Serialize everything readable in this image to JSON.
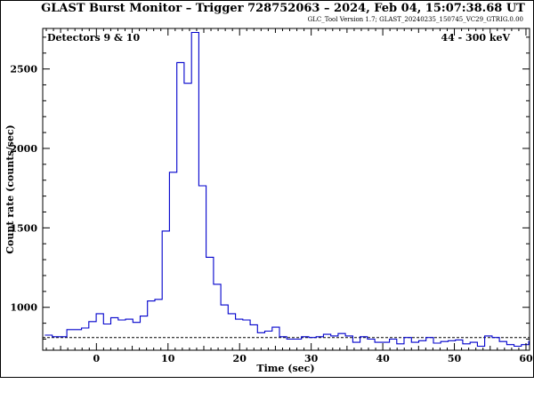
{
  "chart_data": {
    "type": "line",
    "title": "GLAST Burst Monitor  –  Trigger 728752063  –  2024, Feb 04, 15:07:38.68 UT",
    "subtitle": "GLC_Tool Version 1.7; GLAST_20240235_150745_VC29_GTRIG.0.00",
    "xlabel": "Time (sec)",
    "ylabel": "Count rate (counts/sec)",
    "xlim": [
      -7.5,
      60.5
    ],
    "ylim": [
      730,
      2755
    ],
    "xticks": [
      0,
      10,
      20,
      30,
      40,
      50,
      60
    ],
    "yticks": [
      1000,
      1500,
      2000,
      2500
    ],
    "annotation_left": "Detectors 9 & 10",
    "annotation_right": "44 - 300 keV",
    "background_level": 810,
    "bin_width": 1.024,
    "bin_start": -7.2,
    "values": [
      825,
      815,
      815,
      860,
      860,
      870,
      910,
      960,
      895,
      935,
      920,
      925,
      905,
      945,
      1040,
      1050,
      1480,
      1850,
      2540,
      2410,
      2730,
      1765,
      1315,
      1145,
      1015,
      960,
      925,
      920,
      890,
      840,
      850,
      875,
      815,
      800,
      800,
      815,
      810,
      815,
      830,
      820,
      835,
      820,
      780,
      815,
      800,
      780,
      780,
      800,
      770,
      810,
      780,
      790,
      810,
      775,
      785,
      790,
      795,
      770,
      780,
      755,
      820,
      810,
      785,
      765,
      755,
      765,
      785,
      795,
      790,
      770,
      795,
      765,
      800,
      760,
      760,
      800,
      790,
      765,
      775,
      775,
      810,
      800,
      780,
      760,
      760,
      820,
      760,
      780,
      775,
      760,
      775,
      770,
      770,
      780,
      750,
      780,
      790,
      790
    ]
  },
  "colors": {
    "curve": "#0000cc",
    "axes": "#000000",
    "background_line": "#000000"
  }
}
